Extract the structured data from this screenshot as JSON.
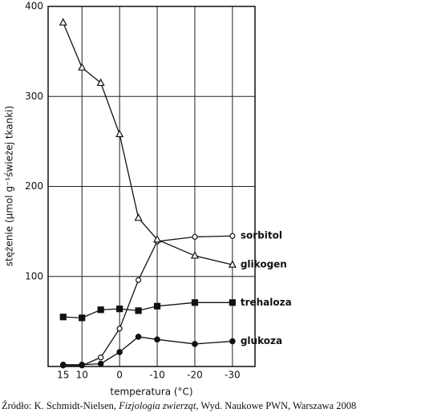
{
  "chart_data": {
    "type": "line",
    "x_label": "temperatura (°C)",
    "y_label": "stężenie (µmol g⁻¹świeżej tkanki)",
    "xlim": [
      19,
      -36
    ],
    "xticks": [
      15,
      10,
      0,
      -10,
      -20,
      -30
    ],
    "xgrid": [
      10,
      0,
      -10,
      -20,
      -30
    ],
    "ylim": [
      0,
      400
    ],
    "yticks": [
      100,
      200,
      300,
      400
    ],
    "grid": true,
    "x": [
      15,
      10,
      5,
      0,
      -5,
      -10,
      -20,
      -30
    ],
    "series": [
      {
        "name": "sorbitol",
        "color": "#111111",
        "marker": "circle-open",
        "values": [
          1,
          1,
          10,
          42,
          96,
          139,
          144,
          145
        ]
      },
      {
        "name": "glikogen",
        "color": "#111111",
        "marker": "triangle",
        "values": [
          382,
          332,
          315,
          258,
          165,
          141,
          123,
          113
        ]
      },
      {
        "name": "trehaloza",
        "color": "#111111",
        "marker": "square",
        "values": [
          55,
          54,
          63,
          64,
          62,
          67,
          71,
          71
        ]
      },
      {
        "name": "glukoza",
        "color": "#111111",
        "marker": "circle",
        "values": [
          2,
          2,
          3,
          16,
          33,
          30,
          25,
          28
        ]
      }
    ]
  },
  "source": {
    "prefix": "Źródło: K. Schmidt-Nielsen, ",
    "italic": "Fizjologia zwierząt",
    "suffix": ", Wyd. Naukowe PWN, Warszawa 2008"
  }
}
